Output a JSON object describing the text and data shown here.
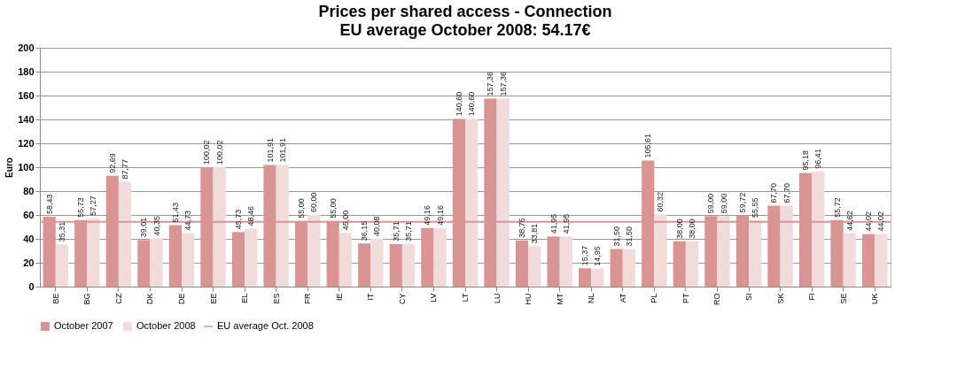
{
  "chart_data": {
    "type": "bar",
    "title": "Prices per shared access - Connection",
    "subtitle": "EU average October 2008:  54.17€",
    "ylabel": "Euro",
    "categories": [
      "BE",
      "BG",
      "CZ",
      "DK",
      "DE",
      "EE",
      "EL",
      "ES",
      "FR",
      "IE",
      "IT",
      "CY",
      "LV",
      "LT",
      "LU",
      "HU",
      "MT",
      "NL",
      "AT",
      "PL",
      "PT",
      "RO",
      "SI",
      "SK",
      "FI",
      "SE",
      "UK"
    ],
    "series": [
      {
        "name": "October 2007",
        "color": "#d99594",
        "values": [
          58.43,
          55.73,
          92.69,
          39.01,
          51.43,
          100.02,
          45.73,
          101.91,
          55.0,
          55.0,
          36.15,
          35.71,
          49.16,
          140.6,
          157.36,
          38.75,
          41.95,
          15.37,
          31.5,
          105.61,
          38.0,
          59.0,
          59.72,
          67.7,
          95.18,
          55.72,
          44.02
        ],
        "value_labels": [
          "58,43",
          "55,73",
          "92,69",
          "39,01",
          "51,43",
          "100,02",
          "45,73",
          "101,91",
          "55,00",
          "55,00",
          "36,15",
          "35,71",
          "49,16",
          "140,60",
          "157,36",
          "38,75",
          "41,95",
          "15,37",
          "31,50",
          "105,61",
          "38,00",
          "59,00",
          "59,72",
          "67,70",
          "95,18",
          "55,72",
          "44,02"
        ]
      },
      {
        "name": "October 2008",
        "color": "#f2dcdb",
        "values": [
          35.31,
          57.27,
          87.77,
          40.35,
          44.73,
          100.02,
          48.46,
          101.91,
          60.0,
          45.0,
          40.08,
          35.71,
          49.16,
          140.6,
          157.36,
          33.81,
          41.95,
          14.95,
          31.5,
          60.32,
          38.0,
          59.0,
          55.55,
          67.7,
          96.41,
          44.62,
          44.02
        ],
        "value_labels": [
          "35,31",
          "57,27",
          "87,77",
          "40,35",
          "44,73",
          "100,02",
          "48,46",
          "101,91",
          "60,00",
          "45,00",
          "40,08",
          "35,71",
          "49,16",
          "140,60",
          "157,36",
          "33,81",
          "41,95",
          "14,95",
          "31,50",
          "60,32",
          "38,00",
          "59,00",
          "55,55",
          "67,70",
          "96,41",
          "44,62",
          "44,02"
        ]
      }
    ],
    "ref_lines": [
      {
        "axis": "y",
        "value": 54.17,
        "label": "EU average Oct. 2008",
        "color": "#d99594",
        "line_style": "solid"
      }
    ],
    "ylim": [
      0,
      200
    ],
    "yticks": [
      0,
      20,
      40,
      60,
      80,
      100,
      120,
      140,
      160,
      180,
      200
    ],
    "grid": "y",
    "legend": "bottom"
  }
}
